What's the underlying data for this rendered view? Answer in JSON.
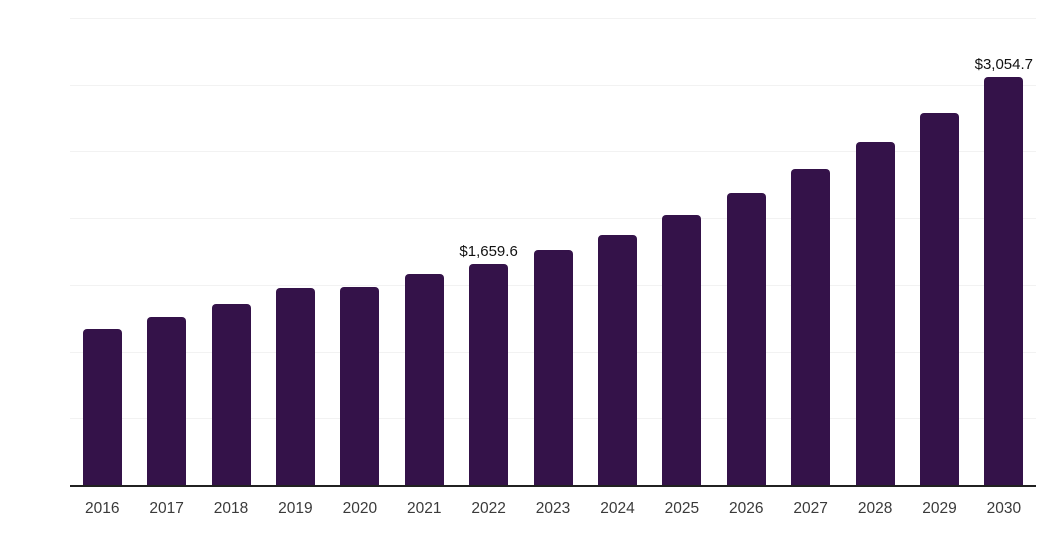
{
  "chart_data": {
    "type": "bar",
    "title": "",
    "xlabel": "",
    "ylabel": "",
    "categories": [
      "2016",
      "2017",
      "2018",
      "2019",
      "2020",
      "2021",
      "2022",
      "2023",
      "2024",
      "2025",
      "2026",
      "2027",
      "2028",
      "2029",
      "2030"
    ],
    "values": [
      1170,
      1259,
      1355,
      1474,
      1481,
      1578,
      1659.6,
      1765,
      1875,
      2023,
      2185,
      2372,
      2570,
      2790,
      3054.7
    ],
    "data_labels": [
      {
        "category": "2022",
        "text": "$1,659.6"
      },
      {
        "category": "2030",
        "text": "$3,054.7"
      }
    ],
    "ylim": [
      0,
      3500
    ],
    "gridline_step": 500,
    "grid": "horizontal gridlines only, no y-axis tick labels",
    "legend_position": "none",
    "bar_color": "#341249"
  },
  "colors": {
    "background": "#ffffff",
    "bar": "#341249",
    "gridline": "#f2f2f2",
    "axis_line": "#212121",
    "tick_label": "#3a3a3a",
    "data_label": "#111111"
  }
}
